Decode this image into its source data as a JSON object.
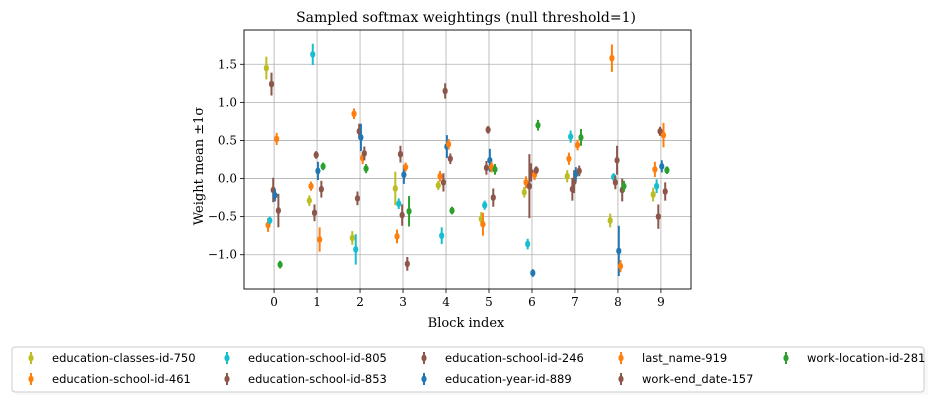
{
  "chart_data": {
    "type": "errorbar-scatter",
    "title": "Sampled softmax weightings (null threshold=1)",
    "xlabel": "Block index",
    "ylabel": "Weight mean ±1σ",
    "xlim": [
      -0.7,
      9.7
    ],
    "ylim": [
      -1.45,
      1.95
    ],
    "xticks": [
      0,
      1,
      2,
      3,
      4,
      5,
      6,
      7,
      8,
      9
    ],
    "yticks": [
      -1.0,
      -0.5,
      0.0,
      0.5,
      1.0,
      1.5
    ],
    "ytick_labels": [
      "−1.0",
      "−0.5",
      "0.0",
      "0.5",
      "1.0",
      "1.5"
    ],
    "grid": true,
    "legend_position": "below",
    "series": [
      {
        "name": "education-classes-id-750",
        "color": "#bcbd22",
        "points": [
          {
            "x": -0.18,
            "y": 1.45,
            "err": 0.15
          },
          {
            "x": 0.82,
            "y": -0.29,
            "err": 0.07
          },
          {
            "x": 1.82,
            "y": -0.78,
            "err": 0.09
          },
          {
            "x": 2.82,
            "y": -0.13,
            "err": 0.22
          },
          {
            "x": 3.82,
            "y": -0.09,
            "err": 0.06
          },
          {
            "x": 4.82,
            "y": -0.53,
            "err": 0.09
          },
          {
            "x": 5.82,
            "y": -0.18,
            "err": 0.07
          },
          {
            "x": 6.82,
            "y": 0.03,
            "err": 0.08
          },
          {
            "x": 7.82,
            "y": -0.55,
            "err": 0.09
          },
          {
            "x": 8.82,
            "y": -0.21,
            "err": 0.09
          }
        ]
      },
      {
        "name": "education-school-id-461",
        "color": "#ff7f0e",
        "points": [
          {
            "x": -0.14,
            "y": -0.61,
            "err": 0.09
          },
          {
            "x": 0.86,
            "y": -0.1,
            "err": 0.06
          },
          {
            "x": 1.86,
            "y": 0.85,
            "err": 0.07
          },
          {
            "x": 2.86,
            "y": -0.76,
            "err": 0.09
          },
          {
            "x": 3.86,
            "y": 0.03,
            "err": 0.07
          },
          {
            "x": 4.86,
            "y": -0.6,
            "err": 0.15
          },
          {
            "x": 5.86,
            "y": -0.05,
            "err": 0.08
          },
          {
            "x": 6.86,
            "y": 0.26,
            "err": 0.08
          },
          {
            "x": 7.86,
            "y": 1.58,
            "err": 0.18
          },
          {
            "x": 8.86,
            "y": 0.12,
            "err": 0.1
          }
        ]
      },
      {
        "name": "education-school-id-805",
        "color": "#17becf",
        "points": [
          {
            "x": -0.1,
            "y": -0.55,
            "err": 0.05
          },
          {
            "x": 0.9,
            "y": 1.63,
            "err": 0.14
          },
          {
            "x": 1.9,
            "y": -0.93,
            "err": 0.2
          },
          {
            "x": 2.9,
            "y": -0.33,
            "err": 0.07
          },
          {
            "x": 3.9,
            "y": -0.75,
            "err": 0.11
          },
          {
            "x": 4.9,
            "y": -0.35,
            "err": 0.06
          },
          {
            "x": 5.9,
            "y": -0.86,
            "err": 0.07
          },
          {
            "x": 6.9,
            "y": 0.55,
            "err": 0.08
          },
          {
            "x": 7.9,
            "y": 0.02,
            "err": 0.05
          },
          {
            "x": 8.9,
            "y": -0.1,
            "err": 0.09
          }
        ]
      },
      {
        "name": "education-school-id-853",
        "color": "#8c564b",
        "points": [
          {
            "x": -0.06,
            "y": 1.24,
            "err": 0.15
          },
          {
            "x": 0.94,
            "y": -0.45,
            "err": 0.11
          },
          {
            "x": 1.94,
            "y": -0.26,
            "err": 0.09
          },
          {
            "x": 2.94,
            "y": 0.32,
            "err": 0.11
          },
          {
            "x": 3.94,
            "y": -0.05,
            "err": 0.12
          },
          {
            "x": 4.94,
            "y": 0.14,
            "err": 0.09
          },
          {
            "x": 5.94,
            "y": -0.1,
            "err": 0.42
          },
          {
            "x": 6.94,
            "y": -0.14,
            "err": 0.15
          },
          {
            "x": 7.94,
            "y": -0.05,
            "err": 0.09
          },
          {
            "x": 8.94,
            "y": -0.5,
            "err": 0.16
          }
        ]
      },
      {
        "name": "education-school-id-246",
        "color": "#8c564b",
        "points": [
          {
            "x": -0.02,
            "y": -0.15,
            "err": 0.16
          },
          {
            "x": 0.98,
            "y": 0.31,
            "err": 0.05
          },
          {
            "x": 1.98,
            "y": 0.62,
            "err": 0.1
          },
          {
            "x": 2.98,
            "y": -0.48,
            "err": 0.14
          },
          {
            "x": 3.98,
            "y": 1.15,
            "err": 0.1
          },
          {
            "x": 4.98,
            "y": 0.64,
            "err": 0.05
          },
          {
            "x": 5.98,
            "y": 0.08,
            "err": 0.12
          },
          {
            "x": 6.98,
            "y": -0.04,
            "err": 0.15
          },
          {
            "x": 7.98,
            "y": 0.24,
            "err": 0.19
          },
          {
            "x": 8.98,
            "y": 0.62,
            "err": 0.06
          }
        ]
      },
      {
        "name": "education-year-id-889",
        "color": "#1f77b4",
        "points": [
          {
            "x": 0.02,
            "y": -0.22,
            "err": 0.08
          },
          {
            "x": 1.02,
            "y": 0.1,
            "err": 0.12
          },
          {
            "x": 2.02,
            "y": 0.54,
            "err": 0.18
          },
          {
            "x": 3.02,
            "y": 0.05,
            "err": 0.12
          },
          {
            "x": 4.02,
            "y": 0.42,
            "err": 0.15
          },
          {
            "x": 5.02,
            "y": 0.24,
            "err": 0.15
          },
          {
            "x": 6.02,
            "y": -1.24,
            "err": 0.05
          },
          {
            "x": 7.02,
            "y": 0.06,
            "err": 0.09
          },
          {
            "x": 8.02,
            "y": -0.95,
            "err": 0.33
          },
          {
            "x": 9.02,
            "y": 0.16,
            "err": 0.08
          }
        ]
      },
      {
        "name": "last_name-919",
        "color": "#ff7f0e",
        "points": [
          {
            "x": 0.06,
            "y": 0.52,
            "err": 0.08
          },
          {
            "x": 1.06,
            "y": -0.8,
            "err": 0.16
          },
          {
            "x": 2.06,
            "y": 0.27,
            "err": 0.08
          },
          {
            "x": 3.06,
            "y": 0.15,
            "err": 0.06
          },
          {
            "x": 4.06,
            "y": 0.45,
            "err": 0.07
          },
          {
            "x": 5.06,
            "y": 0.15,
            "err": 0.07
          },
          {
            "x": 6.06,
            "y": 0.05,
            "err": 0.07
          },
          {
            "x": 7.06,
            "y": 0.44,
            "err": 0.07
          },
          {
            "x": 8.06,
            "y": -1.15,
            "err": 0.08
          },
          {
            "x": 9.06,
            "y": 0.57,
            "err": 0.16
          }
        ]
      },
      {
        "name": "work-end_date-157",
        "color": "#8c564b",
        "points": [
          {
            "x": 0.1,
            "y": -0.42,
            "err": 0.22
          },
          {
            "x": 1.1,
            "y": -0.14,
            "err": 0.11
          },
          {
            "x": 2.1,
            "y": 0.33,
            "err": 0.09
          },
          {
            "x": 3.1,
            "y": -1.12,
            "err": 0.09
          },
          {
            "x": 4.1,
            "y": 0.26,
            "err": 0.07
          },
          {
            "x": 5.1,
            "y": -0.25,
            "err": 0.12
          },
          {
            "x": 6.1,
            "y": 0.11,
            "err": 0.05
          },
          {
            "x": 7.1,
            "y": 0.1,
            "err": 0.07
          },
          {
            "x": 8.1,
            "y": -0.15,
            "err": 0.15
          },
          {
            "x": 9.1,
            "y": -0.17,
            "err": 0.12
          }
        ]
      },
      {
        "name": "work-location-id-281",
        "color": "#2ca02c",
        "points": [
          {
            "x": 0.14,
            "y": -1.13,
            "err": 0.05
          },
          {
            "x": 1.14,
            "y": 0.16,
            "err": 0.05
          },
          {
            "x": 2.14,
            "y": 0.13,
            "err": 0.06
          },
          {
            "x": 3.14,
            "y": -0.43,
            "err": 0.2
          },
          {
            "x": 4.14,
            "y": -0.42,
            "err": 0.05
          },
          {
            "x": 5.14,
            "y": 0.12,
            "err": 0.07
          },
          {
            "x": 6.14,
            "y": 0.7,
            "err": 0.07
          },
          {
            "x": 7.14,
            "y": 0.54,
            "err": 0.11
          },
          {
            "x": 8.14,
            "y": -0.1,
            "err": 0.07
          },
          {
            "x": 9.14,
            "y": 0.11,
            "err": 0.05
          }
        ]
      }
    ]
  }
}
